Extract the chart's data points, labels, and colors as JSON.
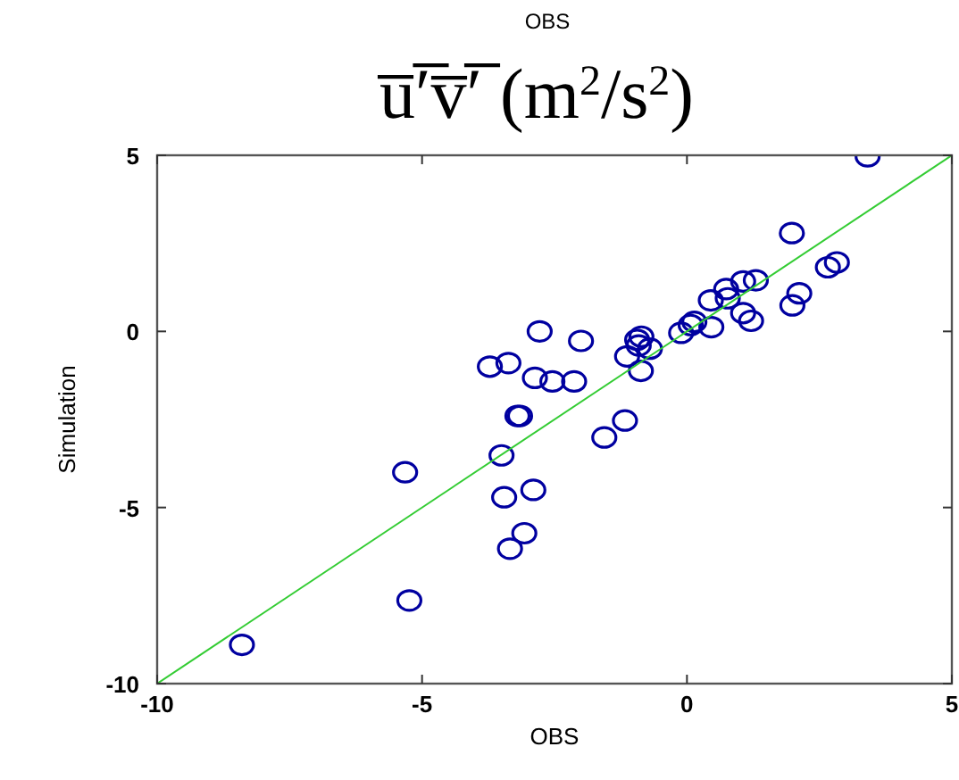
{
  "chart_data": {
    "type": "scatter",
    "title": "u̅′̅v̅′̅ (m$^{2}$/s$^{2}$)",
    "subtitle": "OBS",
    "xlabel": "OBS",
    "ylabel": "Simulation",
    "xlim": [
      -10,
      5
    ],
    "ylim": [
      -10,
      5
    ],
    "xticks": [
      -10,
      -5,
      0,
      5
    ],
    "yticks": [
      -10,
      -5,
      0,
      5
    ],
    "grid": false,
    "marker": "circle",
    "series": [
      {
        "color": "#0000a0",
        "x": [
          -8.4,
          -5.32,
          -5.24,
          -2.78,
          -3.72,
          -3.37,
          -2.87,
          -2.54,
          -3.2,
          -3.15,
          -3.5,
          -3.45,
          -2.9,
          -3.07,
          -3.34,
          -2.0,
          -2.13,
          -1.56,
          -1.17,
          -1.13,
          -0.94,
          -0.86,
          -0.91,
          -0.7,
          -0.87,
          -0.11,
          0.07,
          0.14,
          0.46,
          0.45,
          0.74,
          0.77,
          1.06,
          1.3,
          1.06,
          1.21,
          1.98,
          1.99,
          2.12,
          2.66,
          2.83,
          3.41
        ],
        "values": [
          -8.9,
          -4.0,
          -7.64,
          0.0,
          -1.0,
          -0.9,
          -1.32,
          -1.42,
          -2.4,
          -2.4,
          -3.52,
          -4.71,
          -4.5,
          -5.73,
          -6.17,
          -0.27,
          -1.42,
          -3.01,
          -2.53,
          -0.71,
          -0.24,
          -0.15,
          -0.4,
          -0.49,
          -1.12,
          -0.04,
          0.18,
          0.27,
          0.12,
          0.88,
          1.2,
          0.94,
          1.42,
          1.45,
          0.52,
          0.3,
          2.79,
          0.74,
          1.08,
          1.82,
          1.96,
          4.97
        ]
      },
      {
        "type": "line",
        "color": "#33cc33",
        "x": [
          -10,
          5
        ],
        "values": [
          -10,
          5
        ],
        "marker": "none"
      }
    ]
  }
}
